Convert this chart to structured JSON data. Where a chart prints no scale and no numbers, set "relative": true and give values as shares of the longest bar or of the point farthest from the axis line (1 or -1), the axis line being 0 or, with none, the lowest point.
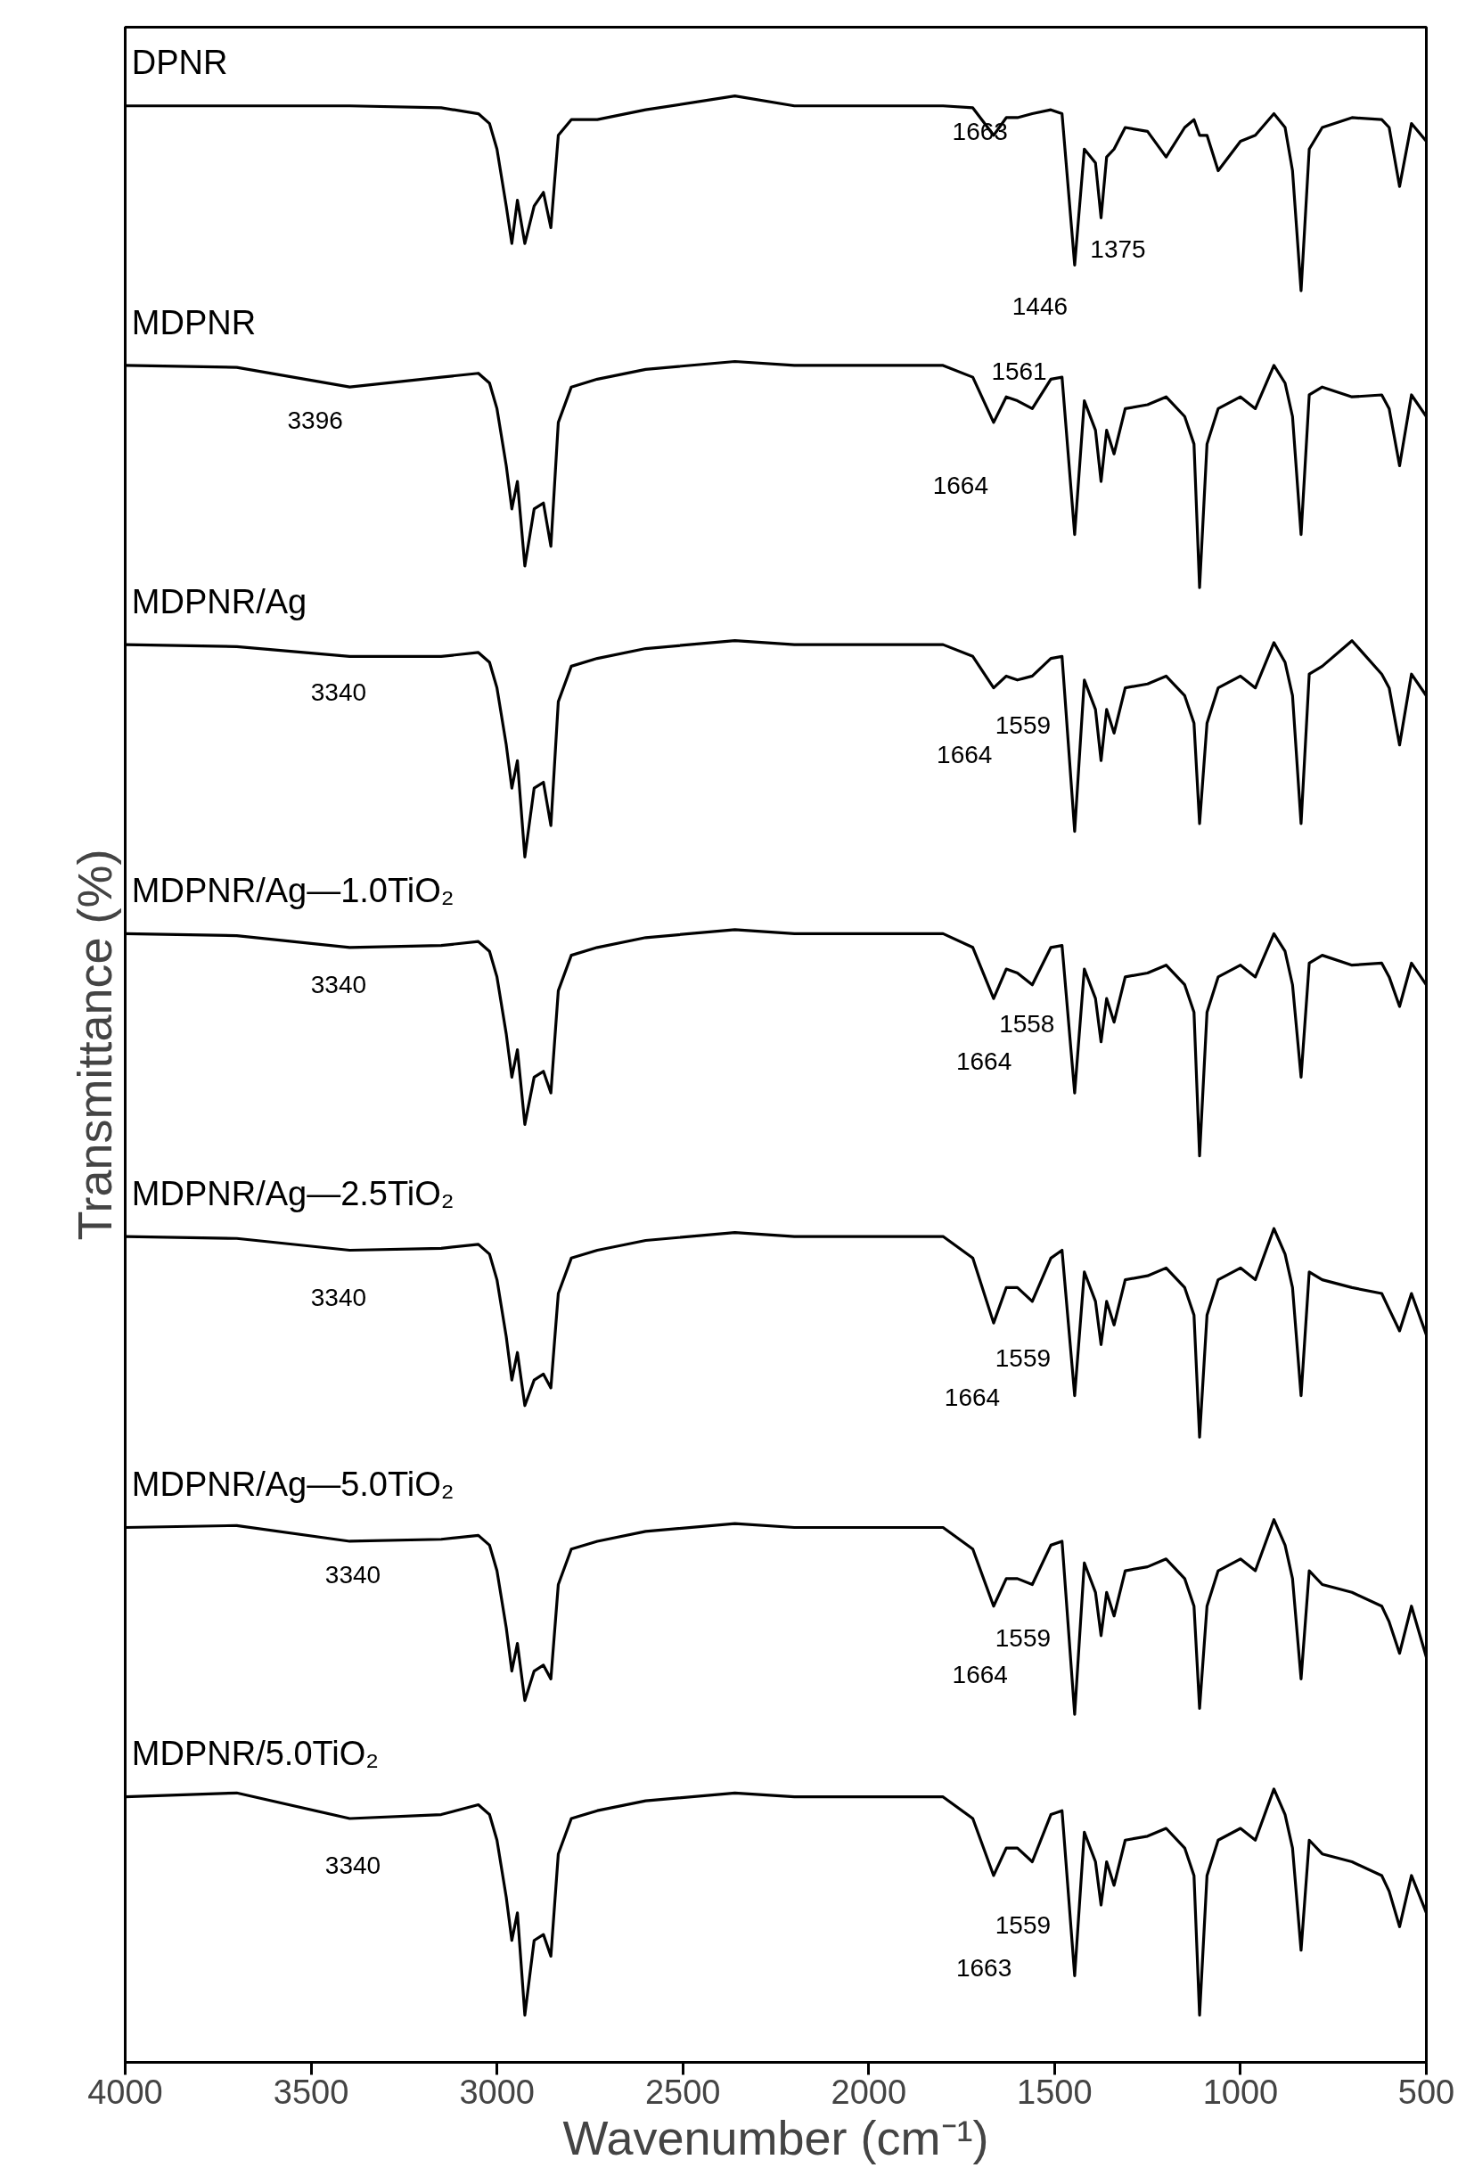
{
  "chart_data": {
    "type": "line",
    "relative": true,
    "xlabel": "Wavenumber (cm⁻¹)",
    "ylabel": "Transmittance (%)",
    "xlim": [
      4000,
      500
    ],
    "xticks": [
      4000,
      3500,
      3000,
      2500,
      2000,
      1500,
      1000,
      500
    ],
    "grid": false,
    "line_style": "solid",
    "x": [
      4000,
      3700,
      3396,
      3150,
      3050,
      3020,
      3000,
      2975,
      2960,
      2945,
      2925,
      2900,
      2875,
      2855,
      2835,
      2800,
      2730,
      2600,
      2360,
      2200,
      1800,
      1720,
      1664,
      1630,
      1600,
      1560,
      1510,
      1480,
      1446,
      1420,
      1390,
      1375,
      1360,
      1340,
      1310,
      1250,
      1200,
      1150,
      1125,
      1110,
      1090,
      1060,
      1000,
      960,
      910,
      880,
      860,
      837,
      815,
      780,
      700,
      620,
      600,
      572,
      540,
      500
    ],
    "series": [
      {
        "name": "DPNR",
        "color": "#000000",
        "values": [
          0.995,
          0.995,
          0.995,
          0.994,
          0.991,
          0.986,
          0.973,
          0.944,
          0.925,
          0.947,
          0.925,
          0.944,
          0.951,
          0.933,
          0.98,
          0.988,
          0.988,
          0.993,
          1.0,
          0.995,
          0.995,
          0.994,
          0.98,
          0.989,
          0.989,
          0.991,
          0.993,
          0.991,
          0.914,
          0.973,
          0.966,
          0.938,
          0.969,
          0.973,
          0.984,
          0.982,
          0.969,
          0.984,
          0.988,
          0.98,
          0.98,
          0.962,
          0.977,
          0.98,
          0.991,
          0.984,
          0.962,
          0.901,
          0.973,
          0.984,
          0.989,
          0.988,
          0.984,
          0.954,
          0.986,
          0.977
        ]
      },
      {
        "name": "MDPNR",
        "color": "#000000",
        "values": [
          0.863,
          0.862,
          0.852,
          0.857,
          0.859,
          0.854,
          0.841,
          0.812,
          0.79,
          0.804,
          0.761,
          0.79,
          0.793,
          0.771,
          0.834,
          0.852,
          0.856,
          0.861,
          0.865,
          0.863,
          0.863,
          0.857,
          0.834,
          0.847,
          0.845,
          0.841,
          0.856,
          0.857,
          0.777,
          0.845,
          0.83,
          0.804,
          0.83,
          0.818,
          0.841,
          0.843,
          0.847,
          0.837,
          0.823,
          0.75,
          0.823,
          0.841,
          0.847,
          0.841,
          0.863,
          0.854,
          0.837,
          0.777,
          0.848,
          0.852,
          0.847,
          0.848,
          0.841,
          0.812,
          0.848,
          0.837
        ]
      },
      {
        "name": "MDPNR/Ag",
        "color": "#000000",
        "values": [
          0.721,
          0.72,
          0.715,
          0.715,
          0.717,
          0.712,
          0.699,
          0.67,
          0.648,
          0.662,
          0.613,
          0.648,
          0.651,
          0.629,
          0.692,
          0.71,
          0.714,
          0.719,
          0.723,
          0.721,
          0.721,
          0.715,
          0.699,
          0.705,
          0.703,
          0.705,
          0.714,
          0.715,
          0.626,
          0.703,
          0.688,
          0.662,
          0.688,
          0.676,
          0.699,
          0.701,
          0.705,
          0.695,
          0.681,
          0.63,
          0.681,
          0.699,
          0.705,
          0.699,
          0.722,
          0.712,
          0.695,
          0.63,
          0.706,
          0.71,
          0.723,
          0.706,
          0.699,
          0.67,
          0.706,
          0.695
        ]
      },
      {
        "name": "MDPNR/Ag—1.0TiO₂",
        "color": "#000000",
        "values": [
          0.574,
          0.573,
          0.567,
          0.568,
          0.57,
          0.565,
          0.552,
          0.523,
          0.501,
          0.515,
          0.477,
          0.501,
          0.504,
          0.493,
          0.545,
          0.563,
          0.567,
          0.572,
          0.576,
          0.574,
          0.574,
          0.567,
          0.541,
          0.556,
          0.554,
          0.548,
          0.567,
          0.568,
          0.493,
          0.556,
          0.541,
          0.519,
          0.541,
          0.529,
          0.552,
          0.554,
          0.558,
          0.548,
          0.534,
          0.461,
          0.534,
          0.552,
          0.558,
          0.552,
          0.574,
          0.565,
          0.548,
          0.501,
          0.559,
          0.563,
          0.558,
          0.559,
          0.552,
          0.537,
          0.559,
          0.548
        ]
      },
      {
        "name": "MDPNR/Ag—2.5TiO₂",
        "color": "#000000",
        "values": [
          0.42,
          0.419,
          0.413,
          0.414,
          0.416,
          0.411,
          0.398,
          0.369,
          0.347,
          0.361,
          0.334,
          0.347,
          0.35,
          0.343,
          0.391,
          0.409,
          0.413,
          0.418,
          0.422,
          0.42,
          0.42,
          0.409,
          0.376,
          0.394,
          0.394,
          0.387,
          0.409,
          0.413,
          0.339,
          0.402,
          0.387,
          0.365,
          0.387,
          0.375,
          0.398,
          0.4,
          0.404,
          0.394,
          0.38,
          0.318,
          0.38,
          0.398,
          0.404,
          0.398,
          0.424,
          0.411,
          0.394,
          0.339,
          0.402,
          0.398,
          0.394,
          0.391,
          0.383,
          0.372,
          0.391,
          0.37
        ]
      },
      {
        "name": "MDPNR/Ag—5.0TiO₂",
        "color": "#000000",
        "values": [
          0.272,
          0.273,
          0.265,
          0.266,
          0.268,
          0.263,
          0.25,
          0.221,
          0.199,
          0.213,
          0.184,
          0.199,
          0.202,
          0.195,
          0.243,
          0.261,
          0.265,
          0.27,
          0.274,
          0.272,
          0.272,
          0.261,
          0.232,
          0.246,
          0.246,
          0.243,
          0.263,
          0.265,
          0.177,
          0.254,
          0.239,
          0.217,
          0.239,
          0.227,
          0.25,
          0.252,
          0.256,
          0.246,
          0.232,
          0.18,
          0.232,
          0.25,
          0.256,
          0.25,
          0.276,
          0.263,
          0.246,
          0.195,
          0.25,
          0.243,
          0.239,
          0.232,
          0.224,
          0.208,
          0.232,
          0.206
        ]
      },
      {
        "name": "MDPNR/5.0TiO₂",
        "color": "#000000",
        "values": [
          0.135,
          0.137,
          0.124,
          0.126,
          0.131,
          0.126,
          0.113,
          0.084,
          0.062,
          0.076,
          0.024,
          0.062,
          0.065,
          0.054,
          0.106,
          0.124,
          0.128,
          0.133,
          0.137,
          0.135,
          0.135,
          0.124,
          0.095,
          0.109,
          0.109,
          0.102,
          0.126,
          0.128,
          0.044,
          0.117,
          0.102,
          0.08,
          0.102,
          0.09,
          0.113,
          0.115,
          0.119,
          0.109,
          0.095,
          0.024,
          0.095,
          0.113,
          0.119,
          0.113,
          0.139,
          0.126,
          0.109,
          0.057,
          0.113,
          0.106,
          0.102,
          0.095,
          0.087,
          0.069,
          0.095,
          0.076
        ]
      }
    ],
    "annotations": [
      "1663",
      "1375",
      "1446",
      "3396",
      "1561",
      "1664",
      "3340",
      "1559",
      "1664",
      "3340",
      "1558",
      "1664",
      "3340",
      "1559",
      "1664",
      "3340",
      "1559",
      "1664",
      "3340",
      "1559",
      "1663"
    ]
  }
}
